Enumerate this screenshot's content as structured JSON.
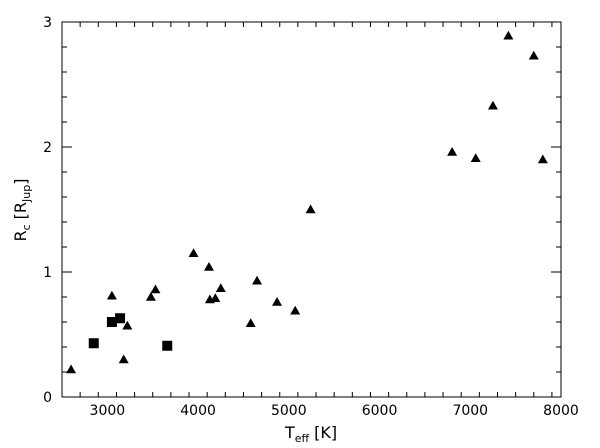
{
  "chart_data": {
    "type": "scatter",
    "xlabel": "T",
    "xlabel_sub": "eff",
    "xlabel_unit": "[K]",
    "ylabel": "R",
    "ylabel_sub": "c",
    "ylabel_unit": "[R",
    "ylabel_unit_sub": "Jup",
    "ylabel_unit_close": "]",
    "xlim": [
      2500,
      8000
    ],
    "ylim": [
      0,
      3
    ],
    "xticks": [
      3000,
      4000,
      5000,
      6000,
      7000,
      8000
    ],
    "yticks": [
      0,
      1,
      2,
      3
    ],
    "series": [
      {
        "marker": "triangle",
        "points": [
          {
            "x": 2600,
            "y": 0.22
          },
          {
            "x": 3050,
            "y": 0.81
          },
          {
            "x": 3180,
            "y": 0.3
          },
          {
            "x": 3220,
            "y": 0.57
          },
          {
            "x": 3480,
            "y": 0.8
          },
          {
            "x": 3530,
            "y": 0.86
          },
          {
            "x": 3950,
            "y": 1.15
          },
          {
            "x": 4120,
            "y": 1.04
          },
          {
            "x": 4130,
            "y": 0.78
          },
          {
            "x": 4190,
            "y": 0.79
          },
          {
            "x": 4250,
            "y": 0.87
          },
          {
            "x": 4580,
            "y": 0.59
          },
          {
            "x": 4650,
            "y": 0.93
          },
          {
            "x": 4870,
            "y": 0.76
          },
          {
            "x": 5070,
            "y": 0.69
          },
          {
            "x": 5240,
            "y": 1.5
          },
          {
            "x": 6800,
            "y": 1.96
          },
          {
            "x": 7060,
            "y": 1.91
          },
          {
            "x": 7250,
            "y": 2.33
          },
          {
            "x": 7420,
            "y": 2.89
          },
          {
            "x": 7700,
            "y": 2.73
          },
          {
            "x": 7800,
            "y": 1.9
          }
        ]
      },
      {
        "marker": "square",
        "points": [
          {
            "x": 2850,
            "y": 0.43
          },
          {
            "x": 3050,
            "y": 0.6
          },
          {
            "x": 3140,
            "y": 0.63
          },
          {
            "x": 3660,
            "y": 0.41
          }
        ]
      }
    ]
  }
}
